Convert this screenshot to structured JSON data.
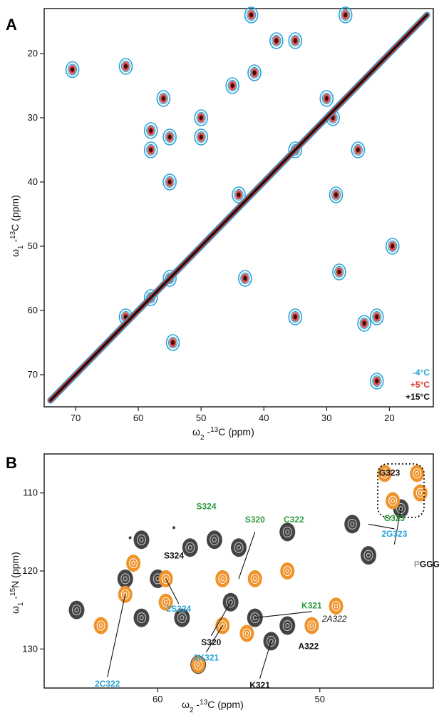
{
  "figure": {
    "panel_a": {
      "letter": "A",
      "chart_data": {
        "type": "scatter",
        "xlabel_prefix": "ω",
        "xlabel_sub": "2",
        "xlabel_mid": " -",
        "xlabel_sup": "13",
        "xlabel_tail": "C  (ppm)",
        "ylabel_prefix": "ω",
        "ylabel_sub": "1",
        "ylabel_mid": " -",
        "ylabel_sup": "13",
        "ylabel_tail": "C  (ppm)",
        "xlim": [
          75,
          13
        ],
        "ylim": [
          13,
          75
        ],
        "x_ticks": [
          "70",
          "60",
          "50",
          "40",
          "30",
          "20"
        ],
        "x_tick_values": [
          70,
          60,
          50,
          40,
          30,
          20
        ],
        "y_ticks": [
          "20",
          "30",
          "40",
          "50",
          "60",
          "70"
        ],
        "y_tick_values": [
          20,
          30,
          40,
          50,
          60,
          70
        ],
        "legend_position": "bottom-right",
        "series": [
          {
            "name": "-4°C",
            "color": "#29a3d6"
          },
          {
            "name": "+5°C",
            "color": "#d8322b"
          },
          {
            "name": "+15°C",
            "color": "#111111"
          }
        ],
        "peaks": [
          {
            "x": 70.5,
            "y": 22.5
          },
          {
            "x": 62,
            "y": 22
          },
          {
            "x": 62,
            "y": 61
          },
          {
            "x": 58,
            "y": 32
          },
          {
            "x": 58,
            "y": 35
          },
          {
            "x": 58,
            "y": 58
          },
          {
            "x": 56,
            "y": 27
          },
          {
            "x": 55,
            "y": 33
          },
          {
            "x": 55,
            "y": 40
          },
          {
            "x": 55,
            "y": 55
          },
          {
            "x": 54.5,
            "y": 65
          },
          {
            "x": 50,
            "y": 30
          },
          {
            "x": 50,
            "y": 33
          },
          {
            "x": 45,
            "y": 25
          },
          {
            "x": 44,
            "y": 42
          },
          {
            "x": 43,
            "y": 55
          },
          {
            "x": 42,
            "y": 14
          },
          {
            "x": 41.5,
            "y": 23
          },
          {
            "x": 38,
            "y": 18
          },
          {
            "x": 35,
            "y": 18
          },
          {
            "x": 35,
            "y": 35
          },
          {
            "x": 35,
            "y": 61
          },
          {
            "x": 30,
            "y": 27
          },
          {
            "x": 29,
            "y": 30
          },
          {
            "x": 28.5,
            "y": 42
          },
          {
            "x": 28,
            "y": 54
          },
          {
            "x": 25,
            "y": 35
          },
          {
            "x": 24,
            "y": 62
          },
          {
            "x": 22,
            "y": 61
          },
          {
            "x": 22,
            "y": 71
          },
          {
            "x": 19.5,
            "y": 50
          },
          {
            "x": 27,
            "y": 14
          }
        ]
      }
    },
    "panel_b": {
      "letter": "B",
      "chart_data": {
        "type": "scatter",
        "xlabel_prefix": "ω",
        "xlabel_sub": "2",
        "xlabel_mid": " -",
        "xlabel_sup": "13",
        "xlabel_tail": "C  (ppm)",
        "ylabel_prefix": "ω",
        "ylabel_sub": "1",
        "ylabel_mid": " -",
        "ylabel_sup": "15",
        "ylabel_tail": "N  (ppm)",
        "xlim": [
          67,
          43
        ],
        "ylim": [
          105,
          135
        ],
        "x_ticks": [
          "60",
          "50"
        ],
        "x_tick_values": [
          60,
          50
        ],
        "y_ticks": [
          "110",
          "120",
          "130"
        ],
        "y_tick_values": [
          110,
          120,
          130
        ],
        "series": [
          {
            "name": "dark",
            "color": "#444444"
          },
          {
            "name": "orange",
            "color": "#f0932b"
          }
        ],
        "annotations": [
          {
            "text": "G323",
            "color": "#111111",
            "x": 45.7,
            "y": 107.8
          },
          {
            "text": "G323",
            "color": "#2e9b3c",
            "x": 45.4,
            "y": 113.6
          },
          {
            "text": "2G323",
            "color": "#29a3d6",
            "x": 45.4,
            "y": 115.6
          },
          {
            "text": "GGG",
            "color": "#111111",
            "x": 43.4,
            "y": 119.5,
            "prefix": "P"
          },
          {
            "text": "S324",
            "color": "#2e9b3c",
            "x": 57.0,
            "y": 112.1
          },
          {
            "text": "S320",
            "color": "#2e9b3c",
            "x": 54.0,
            "y": 113.8
          },
          {
            "text": "C322",
            "color": "#2e9b3c",
            "x": 51.6,
            "y": 113.8
          },
          {
            "text": "S324",
            "color": "#111111",
            "x": 59.0,
            "y": 118.4
          },
          {
            "text": "2S324",
            "color": "#29a3d6",
            "x": 58.7,
            "y": 125.2
          },
          {
            "text": "K321",
            "color": "#2e9b3c",
            "x": 50.5,
            "y": 124.8
          },
          {
            "text": "2A322",
            "color": "#111111",
            "x": 49.1,
            "y": 126.5,
            "italic": true
          },
          {
            "text": "S320",
            "color": "#111111",
            "x": 56.7,
            "y": 129.5
          },
          {
            "text": "2K321",
            "color": "#29a3d6",
            "x": 57.0,
            "y": 131.5
          },
          {
            "text": "A322",
            "color": "#111111",
            "x": 50.7,
            "y": 130.0
          },
          {
            "text": "2C322",
            "color": "#29a3d6",
            "x": 63.1,
            "y": 134.8
          },
          {
            "text": "K321",
            "color": "#111111",
            "x": 53.7,
            "y": 135.0
          },
          {
            "text": "*",
            "color": "#111111",
            "x": 61.7,
            "y": 116.3
          },
          {
            "text": "*",
            "color": "#111111",
            "x": 59.0,
            "y": 115.0
          }
        ],
        "dark_peaks": [
          {
            "x": 61,
            "y": 116
          },
          {
            "x": 58,
            "y": 117
          },
          {
            "x": 56.5,
            "y": 116
          },
          {
            "x": 55,
            "y": 117
          },
          {
            "x": 52,
            "y": 115
          },
          {
            "x": 48,
            "y": 114
          },
          {
            "x": 47,
            "y": 118
          },
          {
            "x": 45,
            "y": 112
          },
          {
            "x": 62,
            "y": 121
          },
          {
            "x": 60,
            "y": 121
          },
          {
            "x": 61,
            "y": 126
          },
          {
            "x": 58.5,
            "y": 126
          },
          {
            "x": 55.5,
            "y": 124
          },
          {
            "x": 54,
            "y": 126
          },
          {
            "x": 53,
            "y": 129
          },
          {
            "x": 52,
            "y": 127
          },
          {
            "x": 57.5,
            "y": 132
          },
          {
            "x": 65,
            "y": 125
          }
        ],
        "orange_peaks": [
          {
            "x": 61.5,
            "y": 119
          },
          {
            "x": 59.5,
            "y": 121
          },
          {
            "x": 56,
            "y": 121
          },
          {
            "x": 54,
            "y": 121
          },
          {
            "x": 52,
            "y": 120
          },
          {
            "x": 62,
            "y": 123
          },
          {
            "x": 59.5,
            "y": 124
          },
          {
            "x": 56,
            "y": 127
          },
          {
            "x": 54.5,
            "y": 128
          },
          {
            "x": 63.5,
            "y": 127
          },
          {
            "x": 57.5,
            "y": 132
          },
          {
            "x": 50.5,
            "y": 127
          },
          {
            "x": 49,
            "y": 124.5
          },
          {
            "x": 46,
            "y": 107.5
          },
          {
            "x": 44,
            "y": 107.5
          },
          {
            "x": 45.5,
            "y": 111
          },
          {
            "x": 43.8,
            "y": 110
          }
        ]
      }
    }
  }
}
